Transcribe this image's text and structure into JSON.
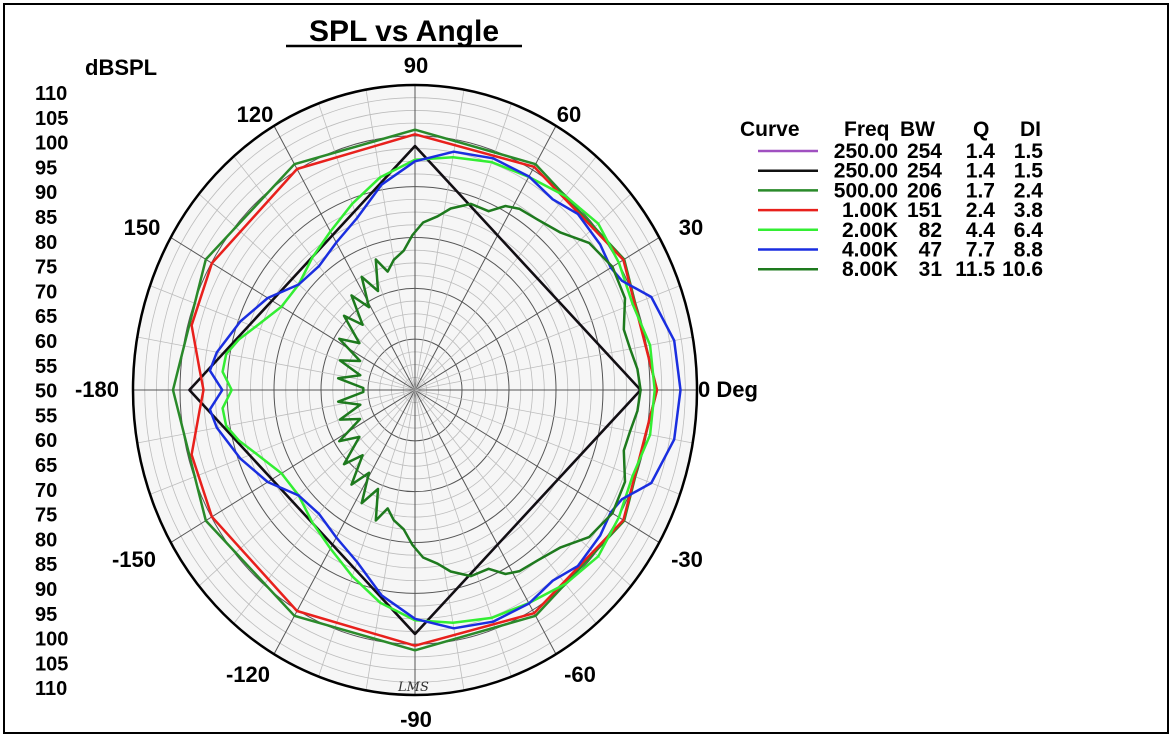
{
  "chart_data": {
    "type": "polar-line",
    "title": "SPL vs Angle",
    "radial_unit_label": "dBSPL",
    "radial_range": [
      50,
      110
    ],
    "radial_ticks": [
      "110",
      "105",
      "100",
      "95",
      "90",
      "85",
      "80",
      "75",
      "70",
      "65",
      "60",
      "55",
      "50",
      "55",
      "60",
      "65",
      "70",
      "75",
      "80",
      "85",
      "90",
      "95",
      "100",
      "105",
      "110"
    ],
    "angle_labels": [
      {
        "deg": 0,
        "text": "0 Deg"
      },
      {
        "deg": 30,
        "text": "30"
      },
      {
        "deg": 60,
        "text": "60"
      },
      {
        "deg": 90,
        "text": "90"
      },
      {
        "deg": 120,
        "text": "120"
      },
      {
        "deg": 150,
        "text": "150"
      },
      {
        "deg": 180,
        "text": "-180"
      },
      {
        "deg": -150,
        "text": "-150"
      },
      {
        "deg": -120,
        "text": "-120"
      },
      {
        "deg": -90,
        "text": "-90"
      },
      {
        "deg": -60,
        "text": "-60"
      },
      {
        "deg": -30,
        "text": "-30"
      }
    ],
    "legend": {
      "headers": [
        "Curve",
        "Freq",
        "BW",
        "Q",
        "DI"
      ],
      "rows": [
        {
          "freq": "250.00",
          "bw": "254",
          "q": "1.4",
          "di": "1.5",
          "color": "#a050c0"
        },
        {
          "freq": "250.00",
          "bw": "254",
          "q": "1.4",
          "di": "1.5",
          "color": "#111111"
        },
        {
          "freq": "500.00",
          "bw": "206",
          "q": "1.7",
          "di": "2.4",
          "color": "#2a8a2a"
        },
        {
          "freq": "1.00K",
          "bw": "151",
          "q": "2.4",
          "di": "3.8",
          "color": "#e8201c"
        },
        {
          "freq": "2.00K",
          "bw": "82",
          "q": "4.4",
          "di": "6.4",
          "color": "#33ee33"
        },
        {
          "freq": "4.00K",
          "bw": "47",
          "q": "7.7",
          "di": "8.8",
          "color": "#1a2ee0"
        },
        {
          "freq": "8.00K",
          "bw": "31",
          "q": "11.5",
          "di": "10.6",
          "color": "#1e7a1e"
        }
      ]
    },
    "series": [
      {
        "freq": "250.00",
        "color": "#a050c0",
        "width": 2.5,
        "points": [
          [
            0,
            98
          ],
          [
            90,
            98
          ],
          [
            180,
            98
          ],
          [
            270,
            98
          ],
          [
            360,
            98
          ]
        ]
      },
      {
        "freq": "250.00",
        "color": "#111111",
        "width": 2.5,
        "points": [
          [
            0,
            98
          ],
          [
            90,
            98
          ],
          [
            180,
            98
          ],
          [
            270,
            98
          ],
          [
            360,
            98
          ]
        ]
      },
      {
        "freq": "500.00",
        "color": "#2a8a2a",
        "width": 2.5,
        "points": [
          [
            0,
            101.5
          ],
          [
            30,
            101.4
          ],
          [
            60,
            101.3
          ],
          [
            90,
            101.2
          ],
          [
            120,
            101.3
          ],
          [
            150,
            101.4
          ],
          [
            180,
            101.5
          ],
          [
            210,
            101.4
          ],
          [
            240,
            101.3
          ],
          [
            270,
            101.2
          ],
          [
            300,
            101.3
          ],
          [
            330,
            101.4
          ],
          [
            360,
            101.5
          ]
        ]
      },
      {
        "freq": "1.00K",
        "color": "#e8201c",
        "width": 2.5,
        "points": [
          [
            0,
            101.5
          ],
          [
            30,
            101.2
          ],
          [
            60,
            100.7
          ],
          [
            90,
            100.3
          ],
          [
            120,
            100.2
          ],
          [
            150,
            99.9
          ],
          [
            165,
            99.2
          ],
          [
            175,
            96
          ],
          [
            180,
            95
          ],
          [
            185,
            96
          ],
          [
            195,
            99.2
          ],
          [
            210,
            99.9
          ],
          [
            240,
            100.2
          ],
          [
            270,
            100.3
          ],
          [
            300,
            100.7
          ],
          [
            330,
            101.2
          ],
          [
            360,
            101.5
          ]
        ]
      },
      {
        "freq": "2.00K",
        "color": "#33ee33",
        "width": 2.5,
        "points": [
          [
            0,
            101
          ],
          [
            10,
            100.8
          ],
          [
            20,
            99.3
          ],
          [
            30,
            100.1
          ],
          [
            40,
            100.9
          ],
          [
            50,
            99.8
          ],
          [
            60,
            98.4
          ],
          [
            70,
            97.7
          ],
          [
            80,
            96.5
          ],
          [
            90,
            95.3
          ],
          [
            100,
            92.5
          ],
          [
            110,
            89
          ],
          [
            120,
            86
          ],
          [
            130,
            84
          ],
          [
            140,
            82.3
          ],
          [
            150,
            82.8
          ],
          [
            160,
            86.2
          ],
          [
            165,
            88.7
          ],
          [
            170,
            90.8
          ],
          [
            175,
            91.1
          ],
          [
            180,
            89
          ],
          [
            185,
            91.1
          ],
          [
            190,
            90.8
          ],
          [
            195,
            88.7
          ],
          [
            200,
            86.2
          ],
          [
            210,
            82.8
          ],
          [
            220,
            82.3
          ],
          [
            230,
            84
          ],
          [
            240,
            86
          ],
          [
            250,
            89
          ],
          [
            260,
            92.5
          ],
          [
            270,
            95.3
          ],
          [
            280,
            96.5
          ],
          [
            290,
            97.7
          ],
          [
            300,
            98.4
          ],
          [
            310,
            99.8
          ],
          [
            320,
            100.9
          ],
          [
            330,
            100.1
          ],
          [
            340,
            99.3
          ],
          [
            350,
            100.8
          ],
          [
            360,
            101
          ]
        ]
      },
      {
        "freq": "4.00K",
        "color": "#1a2ee0",
        "width": 2.5,
        "points": [
          [
            0,
            106.5
          ],
          [
            10,
            106
          ],
          [
            20,
            103.5
          ],
          [
            26,
            99
          ],
          [
            30,
            98.1
          ],
          [
            36,
            98.7
          ],
          [
            45,
            99
          ],
          [
            52,
            97.6
          ],
          [
            60,
            98.5
          ],
          [
            70,
            98.5
          ],
          [
            80,
            97.6
          ],
          [
            90,
            95
          ],
          [
            100,
            91
          ],
          [
            110,
            86
          ],
          [
            120,
            83.5
          ],
          [
            130,
            81.8
          ],
          [
            140,
            82.3
          ],
          [
            150,
            86.2
          ],
          [
            160,
            89.5
          ],
          [
            170,
            92.8
          ],
          [
            175,
            93.8
          ],
          [
            180,
            91
          ],
          [
            185,
            93.8
          ],
          [
            190,
            92.8
          ],
          [
            200,
            89.5
          ],
          [
            210,
            86.2
          ],
          [
            220,
            82.3
          ],
          [
            230,
            81.8
          ],
          [
            240,
            83.5
          ],
          [
            250,
            86
          ],
          [
            260,
            91
          ],
          [
            270,
            95
          ],
          [
            280,
            97.6
          ],
          [
            290,
            98.5
          ],
          [
            300,
            98.5
          ],
          [
            308,
            97.6
          ],
          [
            315,
            99
          ],
          [
            324,
            98.7
          ],
          [
            330,
            98.1
          ],
          [
            334,
            99
          ],
          [
            340,
            103.5
          ],
          [
            350,
            106
          ],
          [
            360,
            106.5
          ]
        ]
      },
      {
        "freq": "8.00K",
        "color": "#1e7a1e",
        "width": 2.5,
        "points": [
          [
            0,
            98
          ],
          [
            5,
            97.5
          ],
          [
            10,
            96.5
          ],
          [
            15,
            96
          ],
          [
            22,
            98.2
          ],
          [
            30,
            98.5
          ],
          [
            38,
            97
          ],
          [
            45,
            93.8
          ],
          [
            52,
            92.5
          ],
          [
            58,
            92
          ],
          [
            62,
            91
          ],
          [
            66,
            88.5
          ],
          [
            72,
            88.5
          ],
          [
            78,
            86.5
          ],
          [
            82,
            84.5
          ],
          [
            87,
            83
          ],
          [
            91,
            80.5
          ],
          [
            95,
            77.5
          ],
          [
            100,
            76
          ],
          [
            104,
            74
          ],
          [
            108,
            77
          ],
          [
            112,
            71
          ],
          [
            117,
            75
          ],
          [
            121,
            69
          ],
          [
            126,
            73
          ],
          [
            131,
            67
          ],
          [
            136,
            71
          ],
          [
            142,
            65
          ],
          [
            148,
            69
          ],
          [
            154,
            63
          ],
          [
            160,
            67
          ],
          [
            166,
            62
          ],
          [
            172,
            66.5
          ],
          [
            178,
            61
          ],
          [
            182,
            61
          ],
          [
            188,
            66.5
          ],
          [
            194,
            62
          ],
          [
            200,
            67
          ],
          [
            206,
            63
          ],
          [
            212,
            69
          ],
          [
            218,
            65
          ],
          [
            224,
            71
          ],
          [
            229,
            67
          ],
          [
            234,
            73
          ],
          [
            239,
            69
          ],
          [
            243,
            75
          ],
          [
            248,
            71
          ],
          [
            252,
            77
          ],
          [
            256,
            74
          ],
          [
            260,
            76
          ],
          [
            265,
            77.5
          ],
          [
            269,
            80.5
          ],
          [
            273,
            83
          ],
          [
            278,
            84.5
          ],
          [
            282,
            86.5
          ],
          [
            288,
            88.5
          ],
          [
            294,
            88.5
          ],
          [
            298,
            91
          ],
          [
            302,
            92
          ],
          [
            308,
            92.5
          ],
          [
            315,
            93.8
          ],
          [
            322,
            97
          ],
          [
            330,
            98.5
          ],
          [
            338,
            98.2
          ],
          [
            345,
            96
          ],
          [
            350,
            96.5
          ],
          [
            355,
            97.5
          ],
          [
            360,
            98
          ]
        ]
      }
    ]
  },
  "annotation": "LMS"
}
